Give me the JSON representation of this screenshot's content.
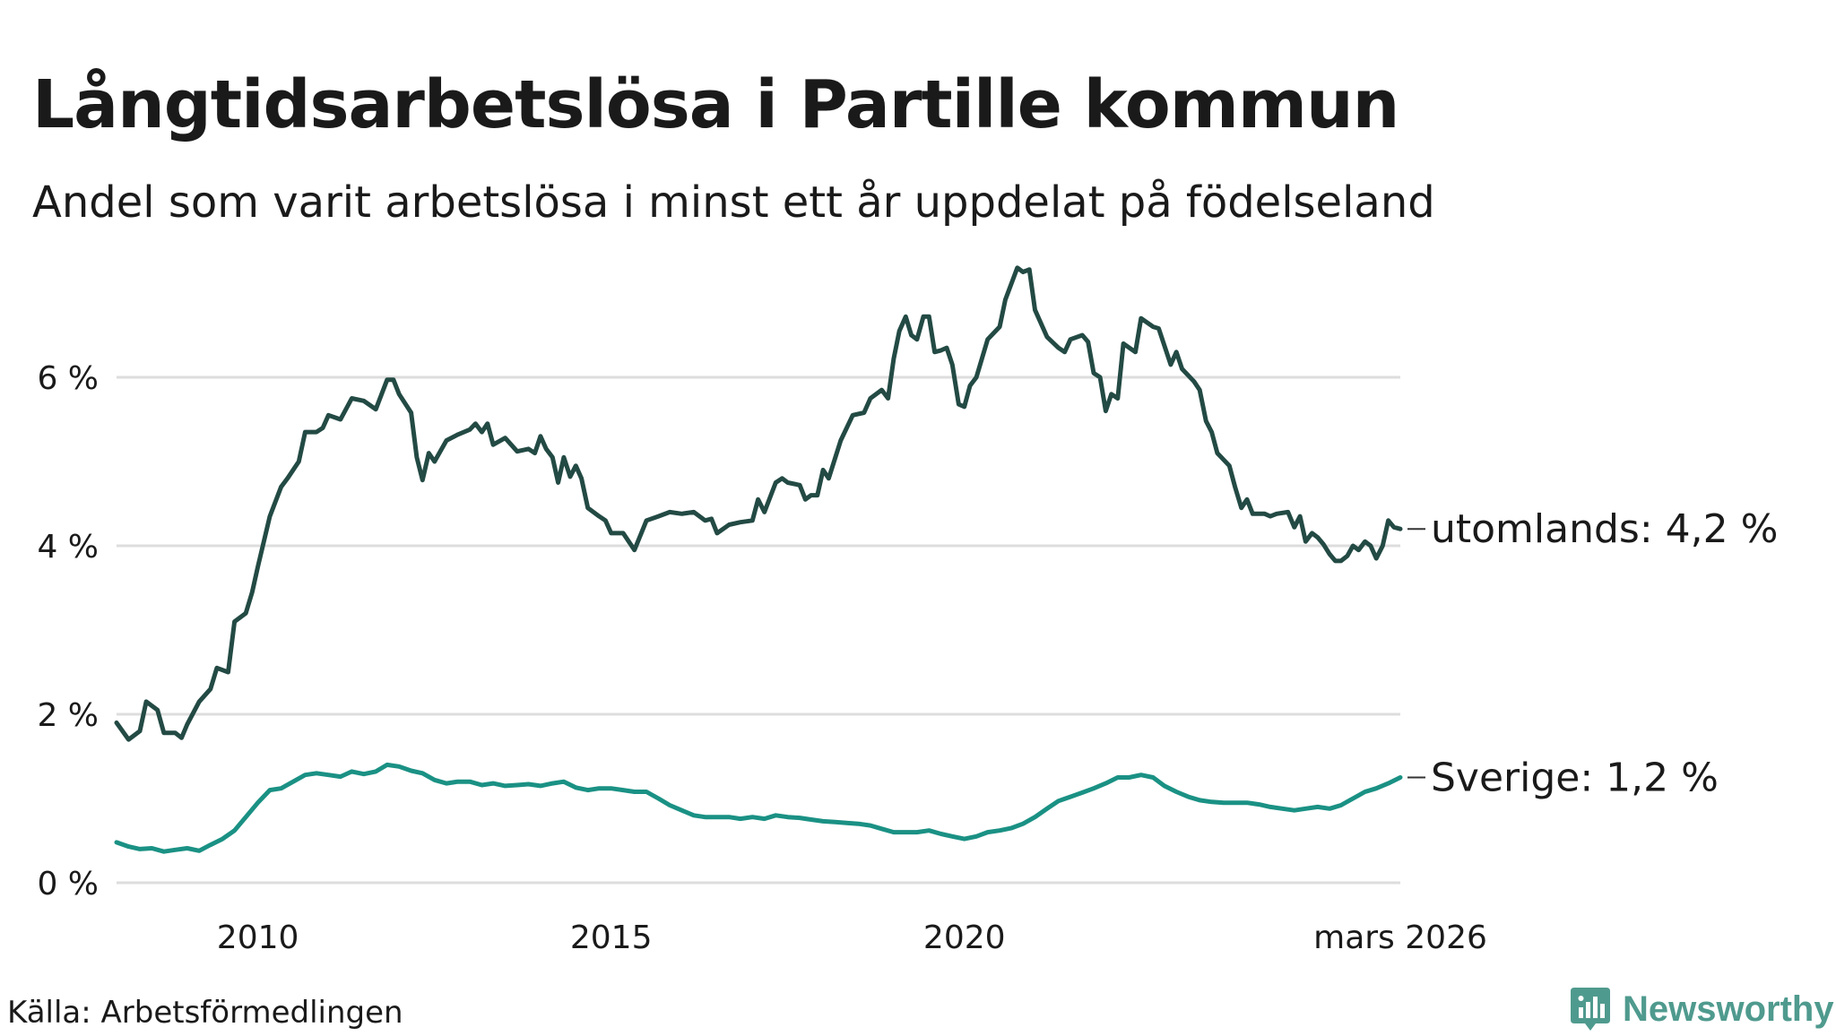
{
  "title": "Långtidsarbetslösa i Partille kommun",
  "subtitle": "Andel som varit arbetslösa i minst ett år uppdelat på födelseland",
  "source": "Källa: Arbetsförmedlingen",
  "brand": "Newsworthy",
  "colors": {
    "utomlands": "#234a44",
    "sverige": "#1a9184",
    "grid": "#dddddd",
    "brand": "#4f9a8e"
  },
  "chart_data": {
    "type": "line",
    "title": "Långtidsarbetslösa i Partille kommun",
    "subtitle": "Andel som varit arbetslösa i minst ett år uppdelat på födelseland",
    "xlabel": "",
    "ylabel": "",
    "xlim": [
      2008.0,
      2026.17
    ],
    "ylim": [
      0,
      7.5
    ],
    "grid": true,
    "yticks": [
      0,
      2,
      4,
      6
    ],
    "ytick_labels": [
      "0 %",
      "2 %",
      "4 %",
      "6 %"
    ],
    "xticks": [
      2010,
      2015,
      2020,
      2026.17
    ],
    "xtick_labels": [
      "2010",
      "2015",
      "2020",
      "mars 2026"
    ],
    "series": [
      {
        "name": "utomlands",
        "end_label": "utomlands: 4,2 %",
        "color": "#234a44",
        "points": [
          [
            2008.0,
            1.9
          ],
          [
            2008.17,
            1.7
          ],
          [
            2008.33,
            1.8
          ],
          [
            2008.42,
            2.15
          ],
          [
            2008.58,
            2.05
          ],
          [
            2008.67,
            1.78
          ],
          [
            2008.83,
            1.78
          ],
          [
            2008.92,
            1.72
          ],
          [
            2009.0,
            1.88
          ],
          [
            2009.17,
            2.15
          ],
          [
            2009.33,
            2.3
          ],
          [
            2009.42,
            2.55
          ],
          [
            2009.58,
            2.5
          ],
          [
            2009.67,
            3.1
          ],
          [
            2009.83,
            3.2
          ],
          [
            2009.92,
            3.45
          ],
          [
            2010.0,
            3.75
          ],
          [
            2010.17,
            4.35
          ],
          [
            2010.33,
            4.7
          ],
          [
            2010.42,
            4.8
          ],
          [
            2010.58,
            5.0
          ],
          [
            2010.67,
            5.35
          ],
          [
            2010.83,
            5.35
          ],
          [
            2010.92,
            5.4
          ],
          [
            2011.0,
            5.55
          ],
          [
            2011.17,
            5.5
          ],
          [
            2011.33,
            5.75
          ],
          [
            2011.5,
            5.72
          ],
          [
            2011.67,
            5.62
          ],
          [
            2011.83,
            5.97
          ],
          [
            2011.92,
            5.97
          ],
          [
            2012.0,
            5.8
          ],
          [
            2012.17,
            5.58
          ],
          [
            2012.25,
            5.05
          ],
          [
            2012.33,
            4.78
          ],
          [
            2012.42,
            5.1
          ],
          [
            2012.5,
            5.0
          ],
          [
            2012.67,
            5.25
          ],
          [
            2012.83,
            5.32
          ],
          [
            2013.0,
            5.38
          ],
          [
            2013.08,
            5.45
          ],
          [
            2013.17,
            5.35
          ],
          [
            2013.25,
            5.45
          ],
          [
            2013.33,
            5.2
          ],
          [
            2013.5,
            5.28
          ],
          [
            2013.67,
            5.12
          ],
          [
            2013.83,
            5.15
          ],
          [
            2013.92,
            5.1
          ],
          [
            2014.0,
            5.3
          ],
          [
            2014.08,
            5.15
          ],
          [
            2014.17,
            5.05
          ],
          [
            2014.25,
            4.75
          ],
          [
            2014.33,
            5.05
          ],
          [
            2014.42,
            4.82
          ],
          [
            2014.5,
            4.95
          ],
          [
            2014.58,
            4.8
          ],
          [
            2014.67,
            4.45
          ],
          [
            2014.83,
            4.35
          ],
          [
            2014.92,
            4.3
          ],
          [
            2015.0,
            4.15
          ],
          [
            2015.17,
            4.15
          ],
          [
            2015.33,
            3.95
          ],
          [
            2015.5,
            4.3
          ],
          [
            2015.67,
            4.35
          ],
          [
            2015.83,
            4.4
          ],
          [
            2016.0,
            4.38
          ],
          [
            2016.17,
            4.4
          ],
          [
            2016.33,
            4.3
          ],
          [
            2016.42,
            4.32
          ],
          [
            2016.5,
            4.15
          ],
          [
            2016.67,
            4.25
          ],
          [
            2016.83,
            4.28
          ],
          [
            2017.0,
            4.3
          ],
          [
            2017.08,
            4.55
          ],
          [
            2017.17,
            4.4
          ],
          [
            2017.33,
            4.75
          ],
          [
            2017.42,
            4.8
          ],
          [
            2017.5,
            4.75
          ],
          [
            2017.67,
            4.72
          ],
          [
            2017.75,
            4.55
          ],
          [
            2017.83,
            4.6
          ],
          [
            2017.92,
            4.6
          ],
          [
            2018.0,
            4.9
          ],
          [
            2018.08,
            4.8
          ],
          [
            2018.25,
            5.25
          ],
          [
            2018.42,
            5.55
          ],
          [
            2018.58,
            5.58
          ],
          [
            2018.67,
            5.75
          ],
          [
            2018.83,
            5.85
          ],
          [
            2018.92,
            5.75
          ],
          [
            2019.0,
            6.22
          ],
          [
            2019.08,
            6.55
          ],
          [
            2019.17,
            6.72
          ],
          [
            2019.25,
            6.5
          ],
          [
            2019.33,
            6.45
          ],
          [
            2019.42,
            6.72
          ],
          [
            2019.5,
            6.72
          ],
          [
            2019.58,
            6.3
          ],
          [
            2019.67,
            6.32
          ],
          [
            2019.75,
            6.35
          ],
          [
            2019.83,
            6.15
          ],
          [
            2019.92,
            5.68
          ],
          [
            2020.0,
            5.65
          ],
          [
            2020.08,
            5.9
          ],
          [
            2020.17,
            6.0
          ],
          [
            2020.33,
            6.45
          ],
          [
            2020.5,
            6.6
          ],
          [
            2020.58,
            6.92
          ],
          [
            2020.75,
            7.3
          ],
          [
            2020.83,
            7.25
          ],
          [
            2020.92,
            7.28
          ],
          [
            2021.0,
            6.8
          ],
          [
            2021.17,
            6.48
          ],
          [
            2021.33,
            6.35
          ],
          [
            2021.42,
            6.3
          ],
          [
            2021.5,
            6.45
          ],
          [
            2021.67,
            6.5
          ],
          [
            2021.75,
            6.42
          ],
          [
            2021.83,
            6.05
          ],
          [
            2021.92,
            6.0
          ],
          [
            2022.0,
            5.6
          ],
          [
            2022.08,
            5.8
          ],
          [
            2022.17,
            5.75
          ],
          [
            2022.25,
            6.4
          ],
          [
            2022.42,
            6.3
          ],
          [
            2022.5,
            6.7
          ],
          [
            2022.67,
            6.6
          ],
          [
            2022.75,
            6.58
          ],
          [
            2022.92,
            6.15
          ],
          [
            2023.0,
            6.3
          ],
          [
            2023.08,
            6.1
          ],
          [
            2023.25,
            5.95
          ],
          [
            2023.33,
            5.85
          ],
          [
            2023.42,
            5.48
          ],
          [
            2023.5,
            5.35
          ],
          [
            2023.58,
            5.1
          ],
          [
            2023.75,
            4.95
          ],
          [
            2023.83,
            4.7
          ],
          [
            2023.92,
            4.45
          ],
          [
            2024.0,
            4.55
          ],
          [
            2024.08,
            4.38
          ],
          [
            2024.25,
            4.38
          ],
          [
            2024.33,
            4.35
          ],
          [
            2024.42,
            4.38
          ],
          [
            2024.58,
            4.4
          ],
          [
            2024.67,
            4.22
          ],
          [
            2024.75,
            4.35
          ],
          [
            2024.83,
            4.05
          ],
          [
            2024.92,
            4.15
          ],
          [
            2025.0,
            4.1
          ],
          [
            2025.08,
            4.02
          ],
          [
            2025.17,
            3.9
          ],
          [
            2025.25,
            3.82
          ],
          [
            2025.33,
            3.82
          ],
          [
            2025.42,
            3.88
          ],
          [
            2025.5,
            4.0
          ],
          [
            2025.58,
            3.95
          ],
          [
            2025.67,
            4.05
          ],
          [
            2025.75,
            4.0
          ],
          [
            2025.83,
            3.85
          ],
          [
            2025.92,
            4.0
          ],
          [
            2026.0,
            4.3
          ],
          [
            2026.08,
            4.22
          ],
          [
            2026.17,
            4.2
          ]
        ]
      },
      {
        "name": "Sverige",
        "end_label": "Sverige: 1,2 %",
        "color": "#1a9184",
        "points": [
          [
            2008.0,
            0.48
          ],
          [
            2008.17,
            0.43
          ],
          [
            2008.33,
            0.4
          ],
          [
            2008.5,
            0.41
          ],
          [
            2008.67,
            0.37
          ],
          [
            2008.83,
            0.39
          ],
          [
            2009.0,
            0.41
          ],
          [
            2009.17,
            0.38
          ],
          [
            2009.33,
            0.45
          ],
          [
            2009.5,
            0.52
          ],
          [
            2009.67,
            0.62
          ],
          [
            2009.83,
            0.78
          ],
          [
            2010.0,
            0.95
          ],
          [
            2010.17,
            1.1
          ],
          [
            2010.33,
            1.12
          ],
          [
            2010.5,
            1.2
          ],
          [
            2010.67,
            1.28
          ],
          [
            2010.83,
            1.3
          ],
          [
            2011.0,
            1.28
          ],
          [
            2011.17,
            1.26
          ],
          [
            2011.33,
            1.32
          ],
          [
            2011.5,
            1.29
          ],
          [
            2011.67,
            1.32
          ],
          [
            2011.83,
            1.4
          ],
          [
            2012.0,
            1.38
          ],
          [
            2012.17,
            1.33
          ],
          [
            2012.33,
            1.3
          ],
          [
            2012.5,
            1.22
          ],
          [
            2012.67,
            1.18
          ],
          [
            2012.83,
            1.2
          ],
          [
            2013.0,
            1.2
          ],
          [
            2013.17,
            1.16
          ],
          [
            2013.33,
            1.18
          ],
          [
            2013.5,
            1.15
          ],
          [
            2013.67,
            1.16
          ],
          [
            2013.83,
            1.17
          ],
          [
            2014.0,
            1.15
          ],
          [
            2014.17,
            1.18
          ],
          [
            2014.33,
            1.2
          ],
          [
            2014.5,
            1.13
          ],
          [
            2014.67,
            1.1
          ],
          [
            2014.83,
            1.12
          ],
          [
            2015.0,
            1.12
          ],
          [
            2015.17,
            1.1
          ],
          [
            2015.33,
            1.08
          ],
          [
            2015.5,
            1.08
          ],
          [
            2015.67,
            1.0
          ],
          [
            2015.83,
            0.92
          ],
          [
            2016.0,
            0.86
          ],
          [
            2016.17,
            0.8
          ],
          [
            2016.33,
            0.78
          ],
          [
            2016.5,
            0.78
          ],
          [
            2016.67,
            0.78
          ],
          [
            2016.83,
            0.76
          ],
          [
            2017.0,
            0.78
          ],
          [
            2017.17,
            0.76
          ],
          [
            2017.33,
            0.8
          ],
          [
            2017.5,
            0.78
          ],
          [
            2017.67,
            0.77
          ],
          [
            2017.83,
            0.75
          ],
          [
            2018.0,
            0.73
          ],
          [
            2018.17,
            0.72
          ],
          [
            2018.33,
            0.71
          ],
          [
            2018.5,
            0.7
          ],
          [
            2018.67,
            0.68
          ],
          [
            2018.83,
            0.64
          ],
          [
            2019.0,
            0.6
          ],
          [
            2019.17,
            0.6
          ],
          [
            2019.33,
            0.6
          ],
          [
            2019.5,
            0.62
          ],
          [
            2019.67,
            0.58
          ],
          [
            2019.83,
            0.55
          ],
          [
            2020.0,
            0.52
          ],
          [
            2020.17,
            0.55
          ],
          [
            2020.33,
            0.6
          ],
          [
            2020.5,
            0.62
          ],
          [
            2020.67,
            0.65
          ],
          [
            2020.83,
            0.7
          ],
          [
            2021.0,
            0.78
          ],
          [
            2021.17,
            0.88
          ],
          [
            2021.33,
            0.97
          ],
          [
            2021.5,
            1.02
          ],
          [
            2021.67,
            1.07
          ],
          [
            2021.83,
            1.12
          ],
          [
            2022.0,
            1.18
          ],
          [
            2022.17,
            1.25
          ],
          [
            2022.33,
            1.25
          ],
          [
            2022.5,
            1.28
          ],
          [
            2022.67,
            1.25
          ],
          [
            2022.83,
            1.15
          ],
          [
            2023.0,
            1.08
          ],
          [
            2023.17,
            1.02
          ],
          [
            2023.33,
            0.98
          ],
          [
            2023.5,
            0.96
          ],
          [
            2023.67,
            0.95
          ],
          [
            2023.83,
            0.95
          ],
          [
            2024.0,
            0.95
          ],
          [
            2024.17,
            0.93
          ],
          [
            2024.33,
            0.9
          ],
          [
            2024.5,
            0.88
          ],
          [
            2024.67,
            0.86
          ],
          [
            2024.83,
            0.88
          ],
          [
            2025.0,
            0.9
          ],
          [
            2025.17,
            0.88
          ],
          [
            2025.33,
            0.92
          ],
          [
            2025.5,
            1.0
          ],
          [
            2025.67,
            1.08
          ],
          [
            2025.83,
            1.12
          ],
          [
            2026.0,
            1.18
          ],
          [
            2026.17,
            1.25
          ]
        ]
      }
    ]
  }
}
